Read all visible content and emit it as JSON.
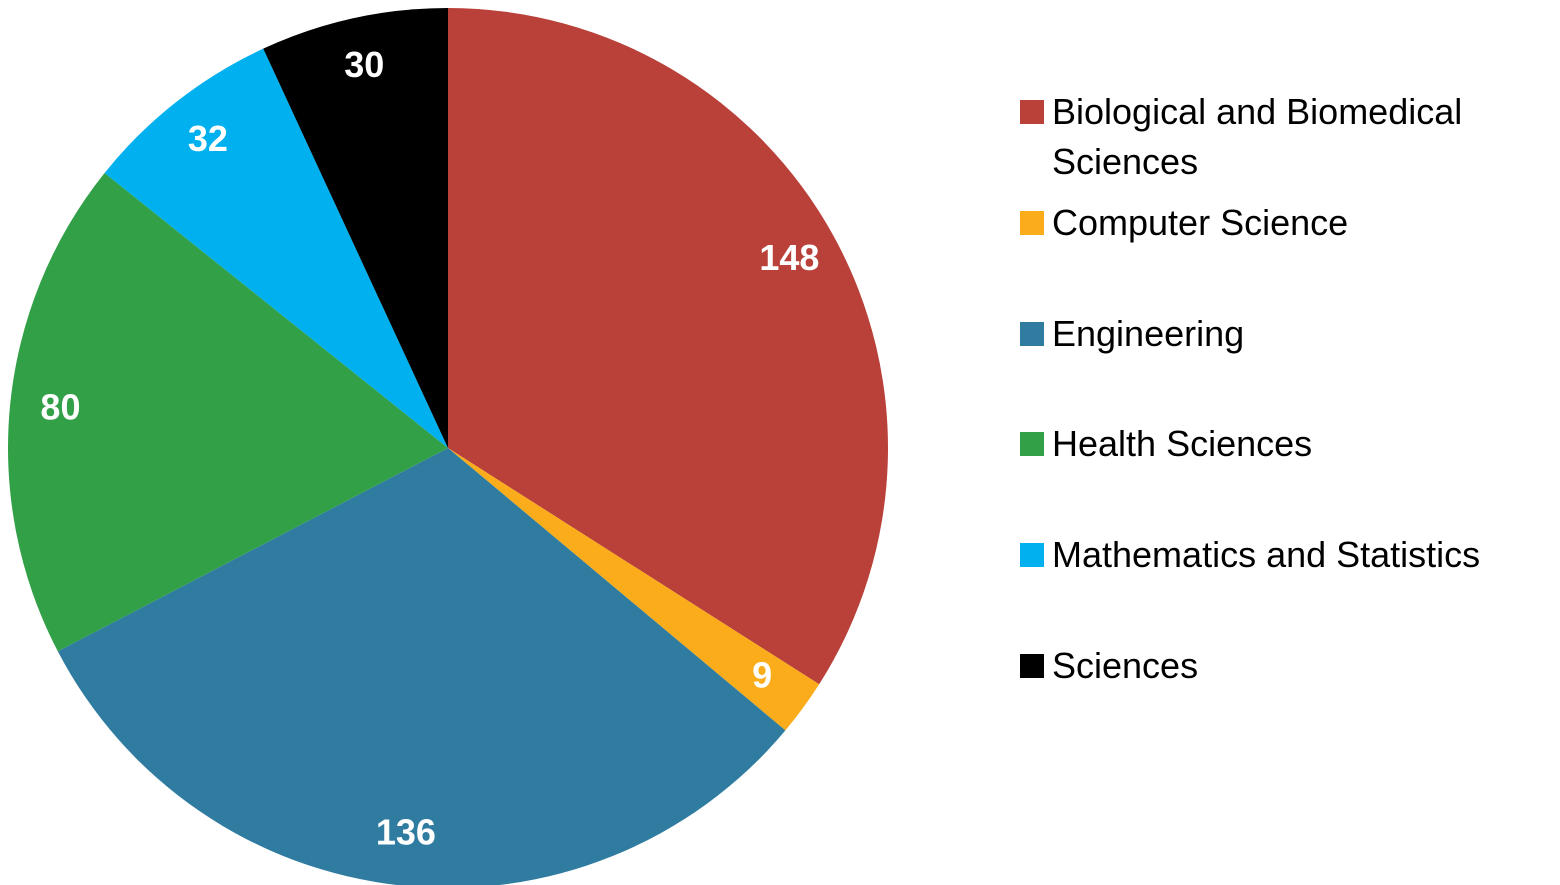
{
  "chart_data": {
    "type": "pie",
    "categories": [
      "Biological and Biomedical Sciences",
      "Computer Science",
      "Engineering",
      "Health Sciences",
      "Mathematics and Statistics",
      "Sciences"
    ],
    "values": [
      148,
      9,
      136,
      80,
      32,
      30
    ],
    "colors": [
      "#b9413a",
      "#fbac1b",
      "#2f7ca0",
      "#31a047",
      "#00b0ef",
      "#000000"
    ],
    "legend": "right"
  }
}
